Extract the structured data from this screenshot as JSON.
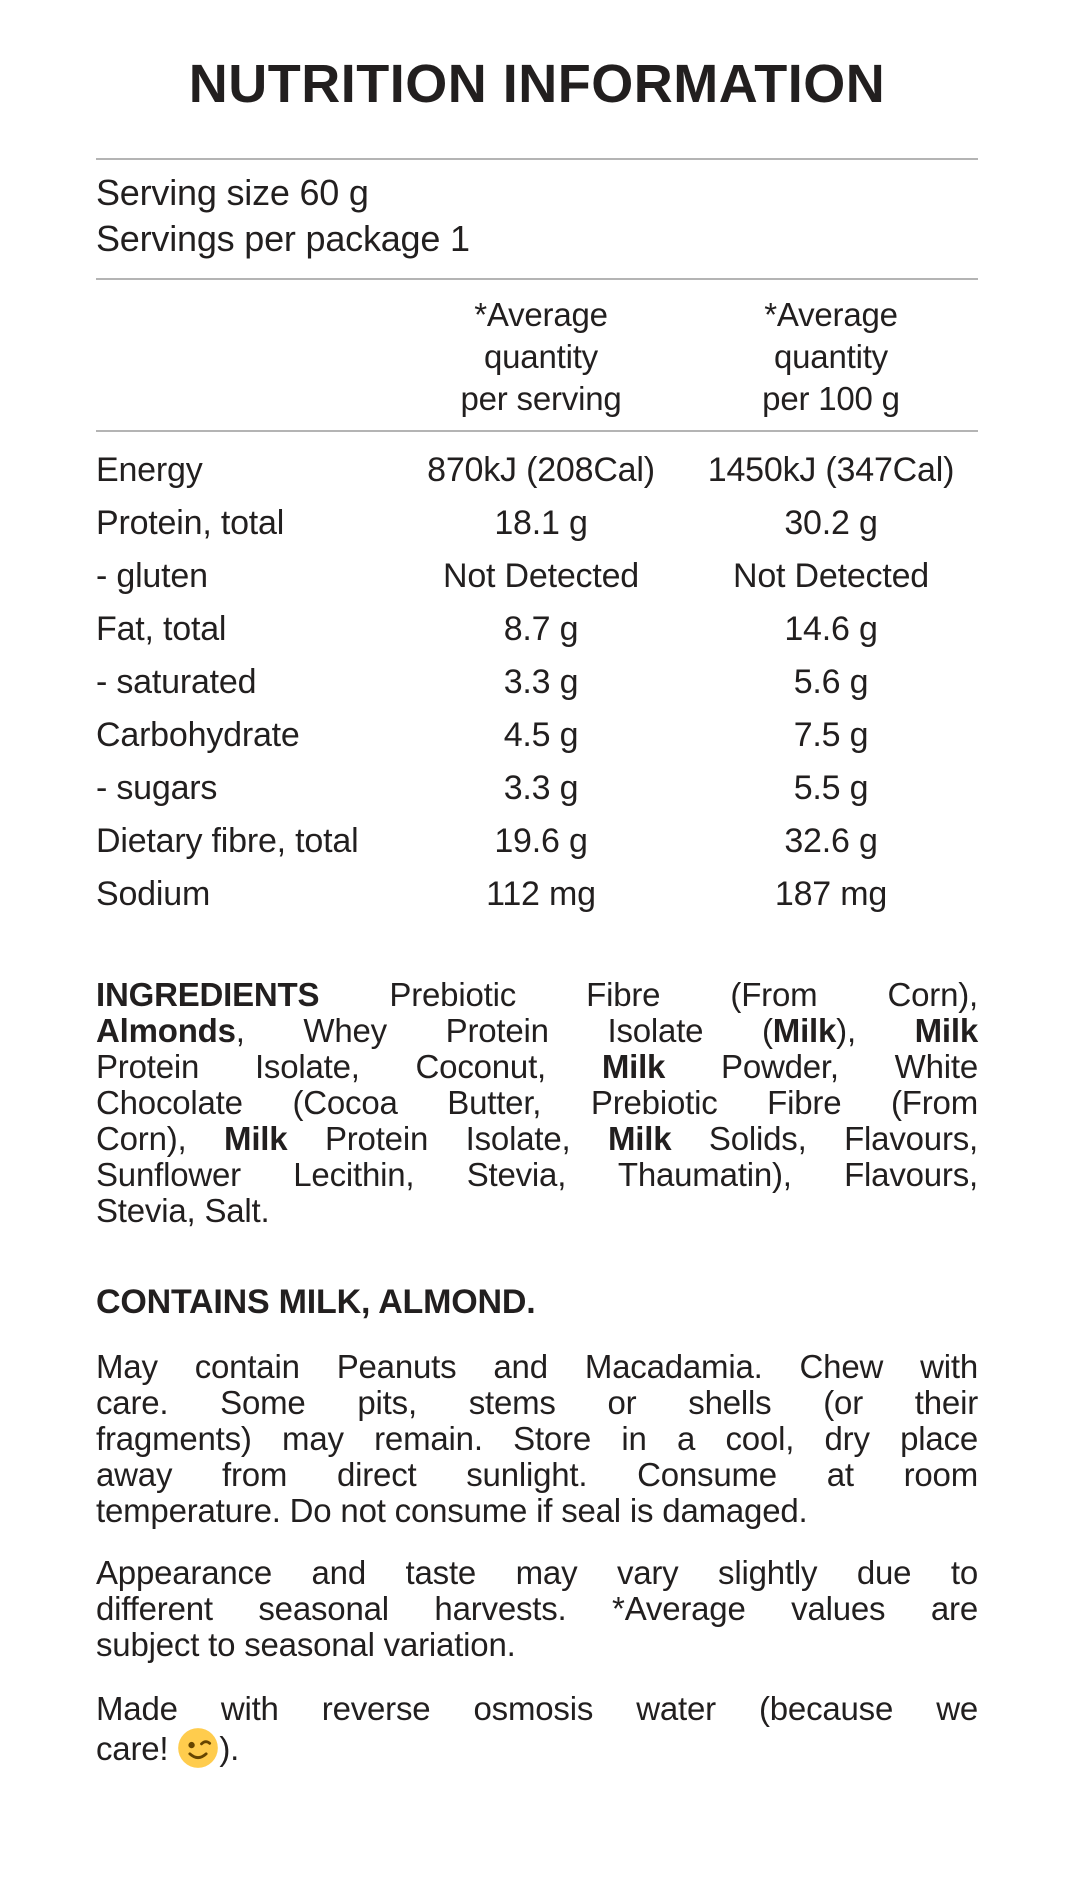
{
  "label": {
    "title": "NUTRITION INFORMATION",
    "serving_size": "Serving size 60 g",
    "servings_per_package": "Servings per package 1",
    "columns": {
      "per_serving": "*Average\nquantity\nper serving",
      "per_100g": "*Average\nquantity\nper 100 g"
    },
    "rows": [
      {
        "label": "Energy",
        "per_serving": "870kJ (208Cal)",
        "per_100g": "1450kJ (347Cal)"
      },
      {
        "label": "Protein, total",
        "per_serving": "18.1 g",
        "per_100g": "30.2 g"
      },
      {
        "label": "- gluten",
        "per_serving": "Not Detected",
        "per_100g": "Not Detected"
      },
      {
        "label": "Fat, total",
        "per_serving": "8.7 g",
        "per_100g": "14.6 g"
      },
      {
        "label": "- saturated",
        "per_serving": "3.3 g",
        "per_100g": "5.6 g"
      },
      {
        "label": "Carbohydrate",
        "per_serving": "4.5 g",
        "per_100g": "7.5 g"
      },
      {
        "label": "- sugars",
        "per_serving": "3.3 g",
        "per_100g": "5.5 g"
      },
      {
        "label": "Dietary fibre, total",
        "per_serving": "19.6 g",
        "per_100g": "32.6 g"
      },
      {
        "label": "Sodium",
        "per_serving": "112 mg",
        "per_100g": "187 mg"
      }
    ],
    "ingredients_lines": [
      [
        {
          "t": "INGREDIENTS",
          "b": true
        },
        {
          "t": " Prebiotic Fibre (From Corn),"
        }
      ],
      [
        {
          "t": "Almonds",
          "b": true
        },
        {
          "t": ", Whey Protein Isolate ("
        },
        {
          "t": "Milk",
          "b": true
        },
        {
          "t": "), "
        },
        {
          "t": "Milk",
          "b": true
        }
      ],
      [
        {
          "t": "Protein Isolate, Coconut, "
        },
        {
          "t": "Milk",
          "b": true
        },
        {
          "t": " Powder, White"
        }
      ],
      [
        {
          "t": "Chocolate (Cocoa Butter, Prebiotic Fibre (From"
        }
      ],
      [
        {
          "t": "Corn), "
        },
        {
          "t": "Milk",
          "b": true
        },
        {
          "t": " Protein Isolate, "
        },
        {
          "t": "Milk",
          "b": true
        },
        {
          "t": " Solids, Flavours,"
        }
      ],
      [
        {
          "t": "Sunflower Lecithin, Stevia, Thaumatin), Flavours,"
        }
      ],
      [
        {
          "t": "Stevia, Salt."
        }
      ]
    ],
    "contains": "CONTAINS MILK, ALMOND.",
    "storage_lines": [
      [
        {
          "t": "May contain Peanuts and Macadamia. Chew with"
        }
      ],
      [
        {
          "t": "care. Some pits, stems or shells (or their"
        }
      ],
      [
        {
          "t": "fragments) may remain. Store in a cool, dry place"
        }
      ],
      [
        {
          "t": "away from direct sunlight. Consume at room"
        }
      ],
      [
        {
          "t": "temperature. Do not consume if seal is damaged."
        }
      ]
    ],
    "variation_lines": [
      [
        {
          "t": "Appearance and taste may vary slightly due to"
        }
      ],
      [
        {
          "t": "different seasonal harvests. *Average values are"
        }
      ],
      [
        {
          "t": "subject to seasonal variation."
        }
      ]
    ],
    "water_lines": [
      [
        {
          "t": "Made with reverse osmosis water (because we"
        }
      ],
      [
        {
          "t": "care! "
        },
        {
          "t": "😉",
          "icon": "winking-face"
        },
        {
          "t": ")."
        }
      ]
    ],
    "emoji": {
      "name": "winking-face",
      "char": "😉"
    },
    "colors": {
      "text": "#221F1F",
      "divider": "#B4B4B4",
      "background": "#FFFFFF",
      "emoji_yellow": "#FFCC4D",
      "emoji_brown": "#664500"
    }
  }
}
